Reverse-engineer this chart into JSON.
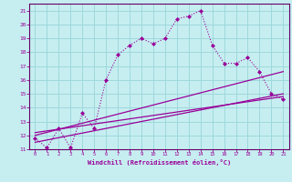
{
  "xlabel": "Windchill (Refroidissement éolien,°C)",
  "bg_color": "#c6eef0",
  "grid_color": "#9dd8dc",
  "line_color": "#990099",
  "spine_color": "#660066",
  "xlim": [
    -0.5,
    21.5
  ],
  "ylim": [
    11,
    21.5
  ],
  "xticks": [
    0,
    1,
    2,
    3,
    4,
    5,
    6,
    7,
    8,
    9,
    10,
    11,
    12,
    13,
    14,
    15,
    16,
    17,
    18,
    19,
    20,
    21
  ],
  "yticks": [
    11,
    12,
    13,
    14,
    15,
    16,
    17,
    18,
    19,
    20,
    21
  ],
  "series1_x": [
    0,
    1,
    2,
    3,
    4,
    5,
    6,
    7,
    8,
    9,
    10,
    11,
    12,
    13,
    14,
    15,
    16,
    17,
    18,
    19,
    20,
    21
  ],
  "series1_y": [
    11.8,
    11.1,
    12.5,
    11.1,
    13.6,
    12.5,
    16.0,
    17.8,
    18.5,
    19.0,
    18.6,
    19.0,
    20.4,
    20.6,
    21.0,
    18.5,
    17.2,
    17.2,
    17.6,
    16.6,
    15.0,
    14.6
  ],
  "series2_x": [
    0,
    21
  ],
  "series2_y": [
    12.0,
    16.6
  ],
  "series3_x": [
    0,
    21
  ],
  "series3_y": [
    11.5,
    15.0
  ],
  "series4_x": [
    0,
    21
  ],
  "series4_y": [
    12.2,
    14.8
  ]
}
